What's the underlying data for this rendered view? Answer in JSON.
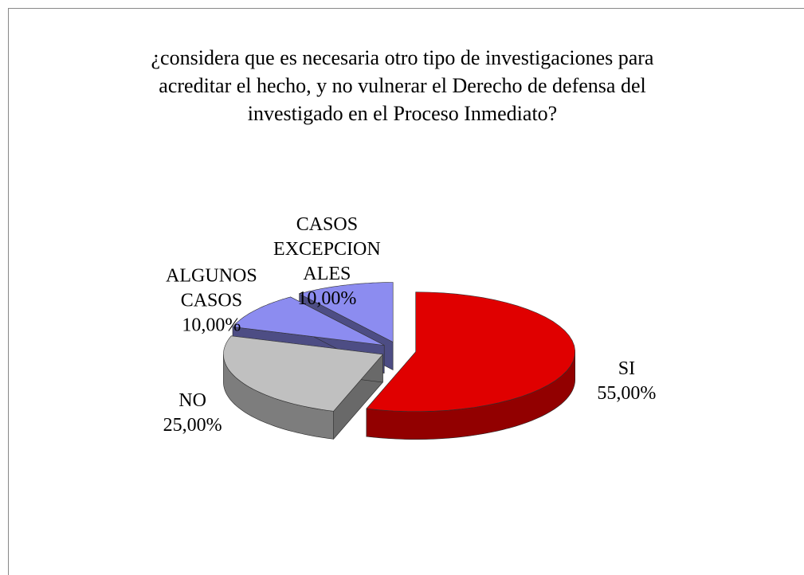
{
  "chart_data": {
    "type": "pie3d",
    "title": "¿considera que es necesaria otro tipo de investigaciones para acreditar el hecho, y no vulnerar el Derecho de defensa del investigado en el Proceso Inmediato?",
    "categories": [
      "SI",
      "NO",
      "ALGUNOS CASOS",
      "CASOS EXCEPCIONALES"
    ],
    "values": [
      55,
      25,
      10,
      10
    ],
    "value_labels": [
      "55,00%",
      "25,00%",
      "10,00%",
      "10,00%"
    ],
    "colors": [
      "#e00000",
      "#c0c0c0",
      "#8c8cf0",
      "#8c8cf0"
    ]
  }
}
